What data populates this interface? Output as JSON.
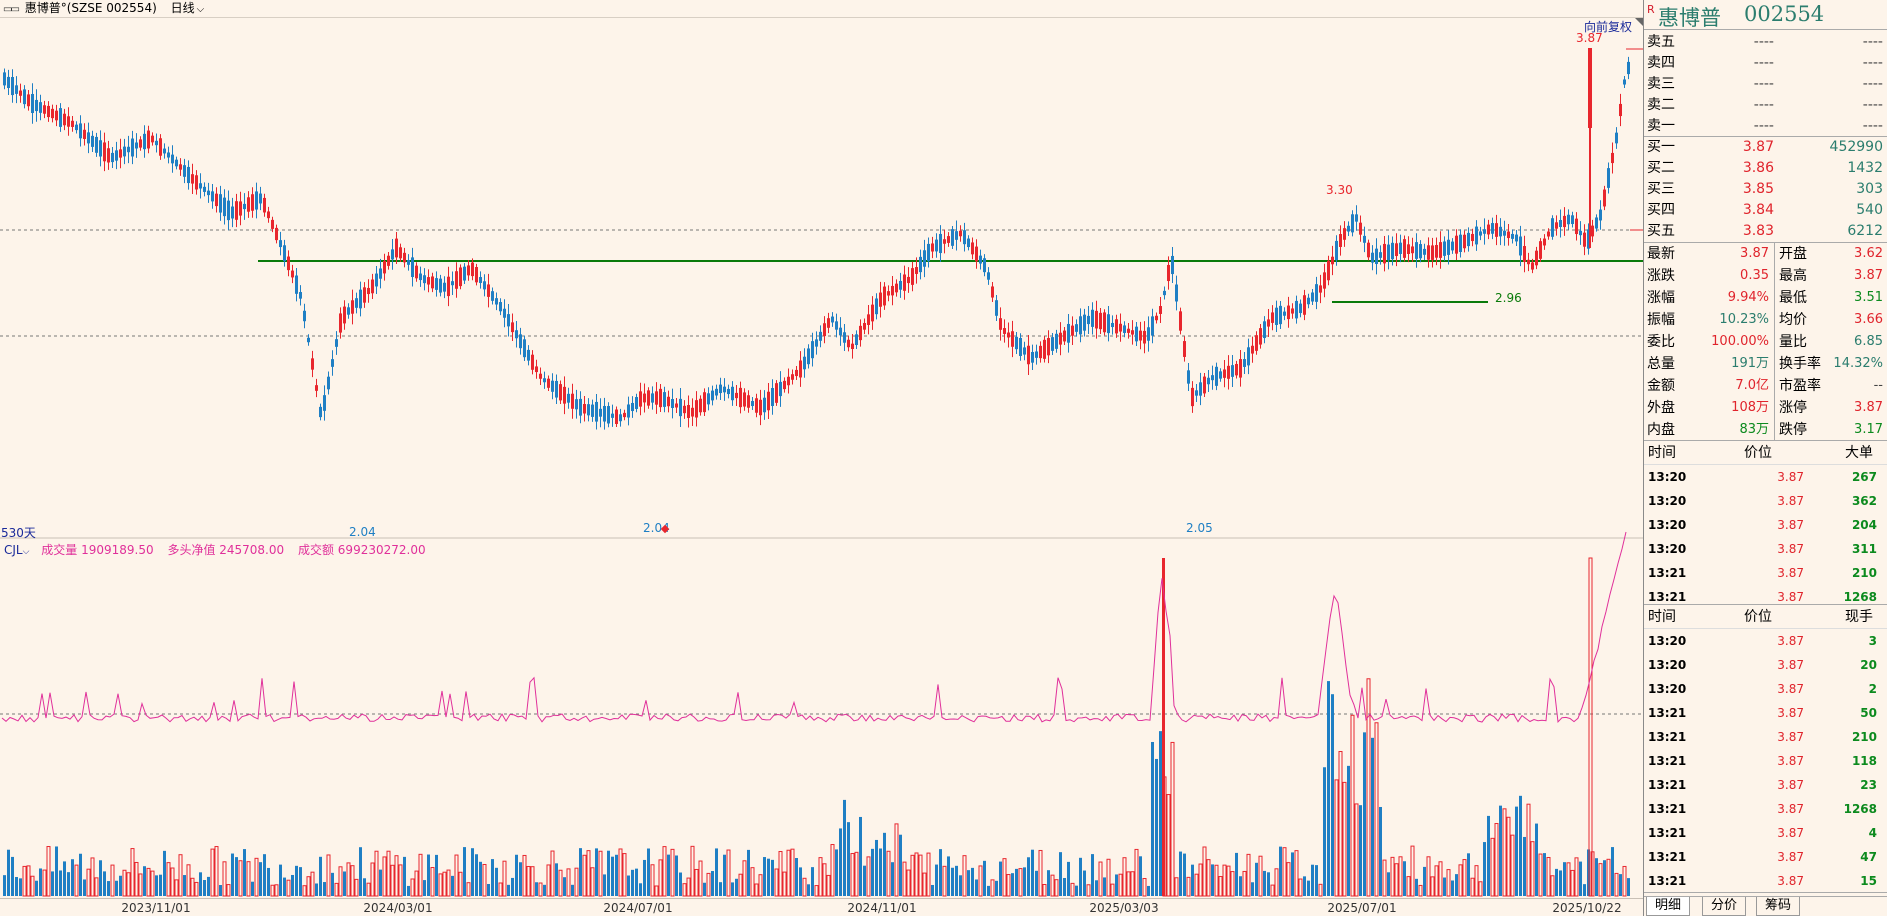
{
  "titlebar": {
    "stock_name": "惠博普°(SZSE 002554)",
    "period": "日线"
  },
  "chart": {
    "restore_label": "向前复权",
    "days_label": "530天",
    "annotations": {
      "price_high": "3.87",
      "price_mid_high": "3.30",
      "low_a": "2.04",
      "low_b": "2.04",
      "low_c": "2.05",
      "mid_marker": "2.96"
    },
    "indicator": {
      "name": "CJL",
      "volume": "成交量 1909189.50",
      "net_long": "多头净值 245708.00",
      "amount": "成交额 699230272.00"
    },
    "x_ticks": [
      "2023/11/01",
      "2024/03/01",
      "2024/07/01",
      "2024/11/01",
      "2025/03/03",
      "2025/07/01",
      "2025/10/22"
    ],
    "colors": {
      "up": "#e8262d",
      "down": "#1f7fc4",
      "support": "#0a7a0a",
      "ma": "#e0309a"
    }
  },
  "panel": {
    "r_tag": "R",
    "name": "惠博普",
    "code": "002554",
    "sells": [
      {
        "label": "卖五",
        "price": "----",
        "vol": "----"
      },
      {
        "label": "卖四",
        "price": "----",
        "vol": "----"
      },
      {
        "label": "卖三",
        "price": "----",
        "vol": "----"
      },
      {
        "label": "卖二",
        "price": "----",
        "vol": "----"
      },
      {
        "label": "卖一",
        "price": "----",
        "vol": "----"
      }
    ],
    "buys": [
      {
        "label": "买一",
        "price": "3.87",
        "vol": "452990"
      },
      {
        "label": "买二",
        "price": "3.86",
        "vol": "1432"
      },
      {
        "label": "买三",
        "price": "3.85",
        "vol": "303"
      },
      {
        "label": "买四",
        "price": "3.84",
        "vol": "540"
      },
      {
        "label": "买五",
        "price": "3.83",
        "vol": "6212"
      }
    ],
    "quote": [
      {
        "l": "最新",
        "v": "3.87",
        "l2": "开盘",
        "v2": "3.62"
      },
      {
        "l": "涨跌",
        "v": "0.35",
        "l2": "最高",
        "v2": "3.87"
      },
      {
        "l": "涨幅",
        "v": "9.94%",
        "l2": "最低",
        "v2": "3.51"
      },
      {
        "l": "振幅",
        "v": "10.23%",
        "l2": "均价",
        "v2": "3.66"
      },
      {
        "l": "委比",
        "v": "100.00%",
        "l2": "量比",
        "v2": "6.85"
      },
      {
        "l": "总量",
        "v": "191万",
        "l2": "换手率",
        "v2": "14.32%"
      },
      {
        "l": "金额",
        "v": "7.0亿",
        "l2": "市盈率",
        "v2": "--"
      },
      {
        "l": "外盘",
        "v": "108万",
        "l2": "涨停",
        "v2": "3.87"
      },
      {
        "l": "内盘",
        "v": "83万",
        "l2": "跌停",
        "v2": "3.17"
      }
    ],
    "trades1": {
      "headers": [
        "时间",
        "价位",
        "大单"
      ],
      "rows": [
        [
          "13:20",
          "3.87",
          "267"
        ],
        [
          "13:20",
          "3.87",
          "362"
        ],
        [
          "13:20",
          "3.87",
          "204"
        ],
        [
          "13:20",
          "3.87",
          "311"
        ],
        [
          "13:21",
          "3.87",
          "210"
        ],
        [
          "13:21",
          "3.87",
          "1268"
        ]
      ]
    },
    "trades2": {
      "headers": [
        "时间",
        "价位",
        "现手"
      ],
      "rows": [
        [
          "13:20",
          "3.87",
          "3"
        ],
        [
          "13:20",
          "3.87",
          "20"
        ],
        [
          "13:20",
          "3.87",
          "2"
        ],
        [
          "13:21",
          "3.87",
          "50"
        ],
        [
          "13:21",
          "3.87",
          "210"
        ],
        [
          "13:21",
          "3.87",
          "118"
        ],
        [
          "13:21",
          "3.87",
          "23"
        ],
        [
          "13:21",
          "3.87",
          "1268"
        ],
        [
          "13:21",
          "3.87",
          "4"
        ],
        [
          "13:21",
          "3.87",
          "47"
        ],
        [
          "13:21",
          "3.87",
          "15"
        ]
      ]
    },
    "tabs": [
      "明细",
      "分价",
      "筹码"
    ]
  }
}
